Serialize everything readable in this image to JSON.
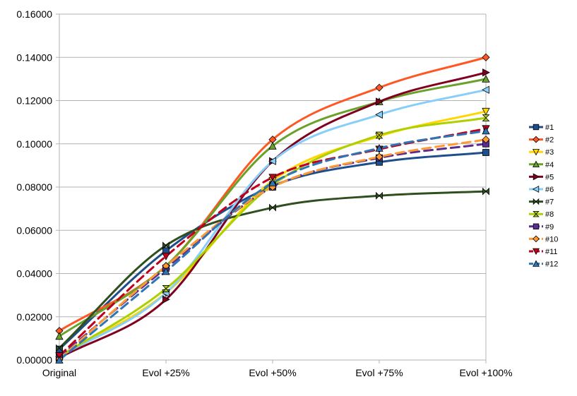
{
  "chart_data": {
    "type": "line",
    "title": "",
    "xlabel": "",
    "ylabel": "",
    "categories": [
      "Original",
      "Evol +25%",
      "Evol +50%",
      "Evol +75%",
      "Evol +100%"
    ],
    "ylim": [
      0,
      0.16
    ],
    "yticks": [
      "0.00000",
      "0.02000",
      "0.04000",
      "0.06000",
      "0.08000",
      "0.10000",
      "0.12000",
      "0.14000",
      "0.16000"
    ],
    "grid": "horizontal",
    "legend_position": "right",
    "series": [
      {
        "name": "#1",
        "color": "#1f4e8c",
        "marker": "square",
        "dashed": false,
        "values": [
          0.005,
          0.0505,
          0.0805,
          0.0915,
          0.096
        ]
      },
      {
        "name": "#2",
        "color": "#ff5722",
        "marker": "diamond",
        "dashed": false,
        "values": [
          0.0135,
          0.0435,
          0.102,
          0.126,
          0.14
        ]
      },
      {
        "name": "#3",
        "color": "#ffd600",
        "marker": "tri-down",
        "dashed": false,
        "values": [
          0.002,
          0.031,
          0.083,
          0.1035,
          0.115
        ]
      },
      {
        "name": "#4",
        "color": "#6aa229",
        "marker": "tri-up",
        "dashed": false,
        "values": [
          0.011,
          0.0435,
          0.099,
          0.1195,
          0.13
        ]
      },
      {
        "name": "#5",
        "color": "#800020",
        "marker": "tri-right",
        "dashed": false,
        "values": [
          0.001,
          0.028,
          0.092,
          0.1195,
          0.133
        ]
      },
      {
        "name": "#6",
        "color": "#87cefa",
        "marker": "tri-left",
        "dashed": false,
        "values": [
          0.0015,
          0.031,
          0.092,
          0.1135,
          0.125
        ]
      },
      {
        "name": "#7",
        "color": "#2f4f1f",
        "marker": "bowtie",
        "dashed": false,
        "values": [
          0.0055,
          0.053,
          0.0705,
          0.076,
          0.078
        ]
      },
      {
        "name": "#8",
        "color": "#aecf00",
        "marker": "hourglass",
        "dashed": false,
        "values": [
          0.0015,
          0.033,
          0.081,
          0.104,
          0.112
        ]
      },
      {
        "name": "#9",
        "color": "#5c2d91",
        "marker": "square",
        "dashed": true,
        "values": [
          0.0015,
          0.0425,
          0.08,
          0.0935,
          0.1
        ]
      },
      {
        "name": "#10",
        "color": "#ff9933",
        "marker": "diamond",
        "dashed": true,
        "values": [
          0.0005,
          0.0435,
          0.08,
          0.094,
          0.102
        ]
      },
      {
        "name": "#11",
        "color": "#c0001c",
        "marker": "tri-down",
        "dashed": true,
        "values": [
          0.002,
          0.048,
          0.0845,
          0.0975,
          0.107
        ]
      },
      {
        "name": "#12",
        "color": "#2e75b6",
        "marker": "tri-up",
        "dashed": true,
        "values": [
          0.0,
          0.041,
          0.082,
          0.098,
          0.106
        ]
      }
    ]
  }
}
